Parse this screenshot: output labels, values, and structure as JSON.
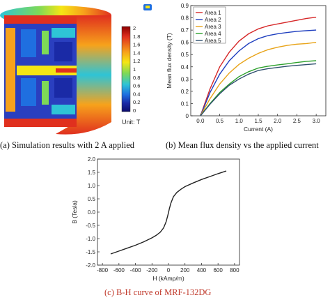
{
  "captions": {
    "a": "(a) Simulation results with 2 A applied",
    "b": "(b) Mean flux density vs the applied current",
    "c": "(c) B-H curve of MRF-132DG"
  },
  "colorbar": {
    "ticks": [
      "2",
      "1.8",
      "1.6",
      "1.4",
      "1.2",
      "1",
      "0.8",
      "0.6",
      "0.4",
      "0.2",
      "0"
    ],
    "unit_label": "Unit: T",
    "colors": [
      "#8b0000",
      "#e0301e",
      "#f7a21b",
      "#f5e614",
      "#7ed957",
      "#2ec4d6",
      "#1f6fe0",
      "#1a2aa6",
      "#0b0b6b"
    ]
  },
  "chart_data": [
    {
      "type": "line",
      "xlabel": "Current (A)",
      "ylabel": "Mean flux density (T)",
      "xlim": [
        -0.25,
        3.25
      ],
      "ylim": [
        0,
        0.9
      ],
      "xticks": [
        "0.0",
        "0.5",
        "1.0",
        "1.5",
        "2.0",
        "2.5",
        "3.0"
      ],
      "yticks": [
        "0",
        "0.1",
        "0.2",
        "0.3",
        "0.4",
        "0.5",
        "0.6",
        "0.7",
        "0.8",
        "0.9"
      ],
      "legend_position": "top-left",
      "x": [
        0,
        0.25,
        0.5,
        0.75,
        1.0,
        1.25,
        1.5,
        1.75,
        2.0,
        2.25,
        2.5,
        2.75,
        3.0
      ],
      "series": [
        {
          "name": "Area 1",
          "color": "#d62728",
          "values": [
            0.0,
            0.22,
            0.4,
            0.52,
            0.61,
            0.67,
            0.71,
            0.735,
            0.75,
            0.765,
            0.78,
            0.795,
            0.805
          ]
        },
        {
          "name": "Area 2",
          "color": "#1f3fbf",
          "values": [
            0.0,
            0.19,
            0.34,
            0.45,
            0.53,
            0.59,
            0.63,
            0.655,
            0.67,
            0.68,
            0.69,
            0.695,
            0.7
          ]
        },
        {
          "name": "Area 3",
          "color": "#e8a317",
          "values": [
            0.0,
            0.14,
            0.26,
            0.35,
            0.42,
            0.47,
            0.51,
            0.54,
            0.56,
            0.575,
            0.585,
            0.59,
            0.6
          ]
        },
        {
          "name": "Area 4",
          "color": "#2ca02c",
          "values": [
            0.0,
            0.1,
            0.19,
            0.26,
            0.32,
            0.36,
            0.39,
            0.405,
            0.415,
            0.425,
            0.435,
            0.445,
            0.45
          ]
        },
        {
          "name": "Area 5",
          "color": "#2f4f6f",
          "values": [
            0.0,
            0.095,
            0.18,
            0.25,
            0.3,
            0.34,
            0.37,
            0.385,
            0.395,
            0.405,
            0.412,
            0.418,
            0.425
          ]
        }
      ]
    },
    {
      "type": "line",
      "xlabel": "H (kAmp/m)",
      "ylabel": "B (Tesla)",
      "xlim": [
        -860,
        860
      ],
      "ylim": [
        -2.0,
        2.0
      ],
      "xticks": [
        "-800",
        "-600",
        "-400",
        "-200",
        "0",
        "200",
        "400",
        "600",
        "800"
      ],
      "yticks": [
        "2.0",
        "1.5",
        "1.0",
        "0.5",
        "0.0",
        "-0.5",
        "-1.0",
        "-1.5",
        "-2.0"
      ],
      "series": [
        {
          "name": "",
          "color": "#222222",
          "x": [
            -700,
            -600,
            -500,
            -400,
            -300,
            -200,
            -150,
            -100,
            -60,
            -30,
            -10,
            0,
            10,
            30,
            60,
            100,
            150,
            200,
            300,
            400,
            500,
            600,
            700
          ],
          "values": [
            -1.58,
            -1.47,
            -1.36,
            -1.25,
            -1.12,
            -0.97,
            -0.88,
            -0.76,
            -0.6,
            -0.38,
            -0.15,
            -0.02,
            0.12,
            0.35,
            0.58,
            0.74,
            0.86,
            0.96,
            1.1,
            1.23,
            1.34,
            1.45,
            1.55
          ]
        }
      ]
    }
  ]
}
